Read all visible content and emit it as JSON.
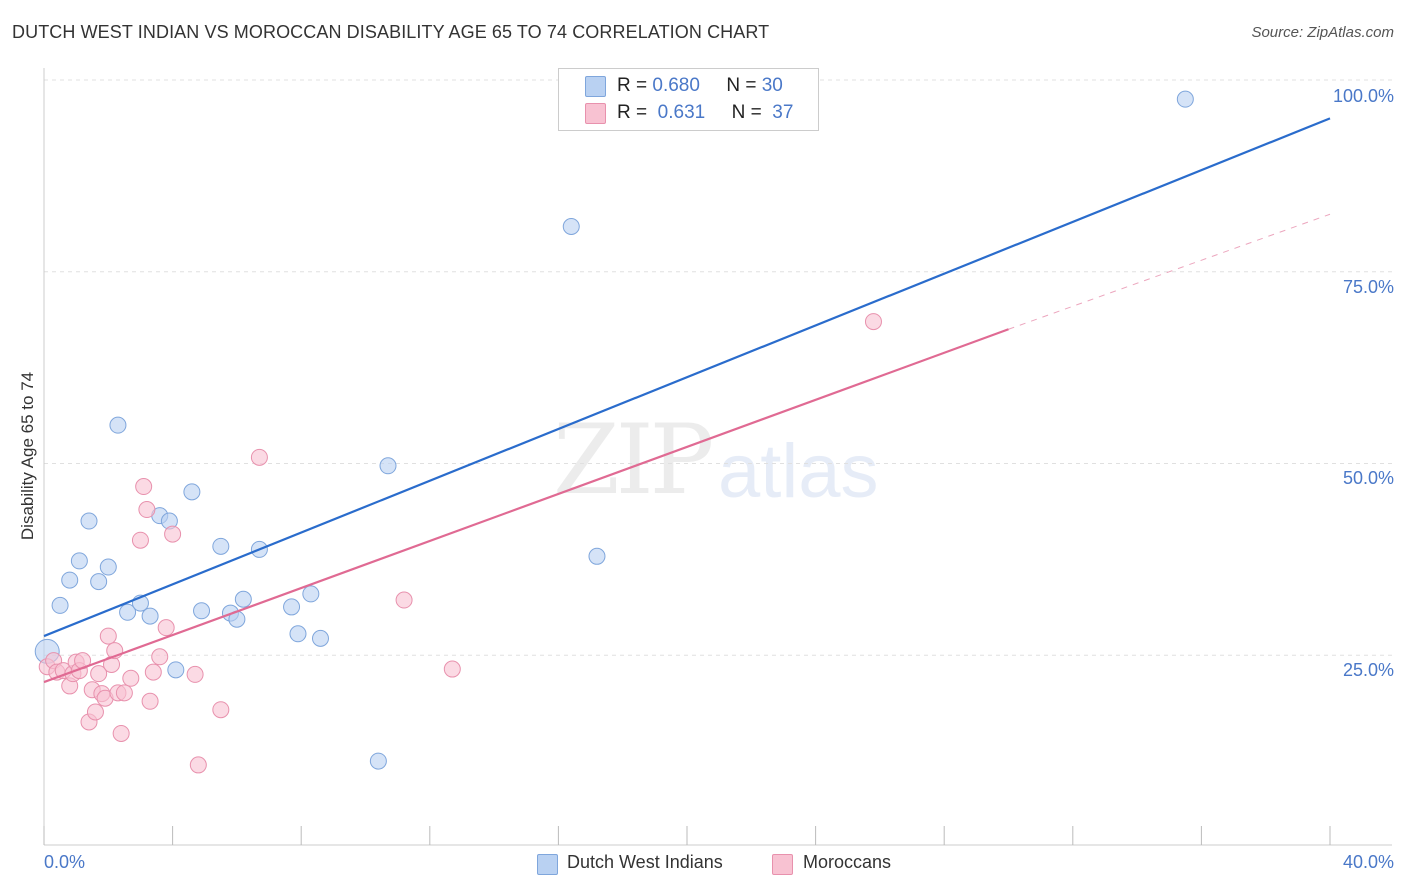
{
  "title": "DUTCH WEST INDIAN VS MOROCCAN DISABILITY AGE 65 TO 74 CORRELATION CHART",
  "source": "Source: ZipAtlas.com",
  "watermark": {
    "zip": "ZIP",
    "atlas": "atlas"
  },
  "legend": {
    "rows": [
      {
        "r_label": "R =",
        "r_value": "0.680",
        "n_label": "N =",
        "n_value": "30"
      },
      {
        "r_label": "R =",
        "r_value": "0.631",
        "n_label": "N =",
        "n_value": "37"
      }
    ],
    "bottom": [
      "Dutch West Indians",
      "Moroccans"
    ]
  },
  "colors": {
    "blue_fill": "#b9d1f2",
    "blue_stroke": "#7fa6dc",
    "blue_line": "#2a6ccc",
    "pink_fill": "#f8c2d2",
    "pink_stroke": "#e891ad",
    "pink_line": "#e06a93",
    "grid": "#e0e0e0",
    "tick_text": "#4a78c8"
  },
  "chart_data": {
    "type": "scatter",
    "title": "DUTCH WEST INDIAN VS MOROCCAN DISABILITY AGE 65 TO 74 CORRELATION CHART",
    "xlabel": "",
    "ylabel": "Disability Age 65 to 74",
    "xlim": [
      0,
      40
    ],
    "ylim": [
      0,
      100
    ],
    "x_tick_labels": [
      {
        "value": 0,
        "label": "0.0%"
      },
      {
        "value": 40,
        "label": "40.0%"
      }
    ],
    "y_tick_labels": [
      {
        "value": 25,
        "label": "25.0%"
      },
      {
        "value": 50,
        "label": "50.0%"
      },
      {
        "value": 75,
        "label": "75.0%"
      },
      {
        "value": 100,
        "label": "100.0%"
      }
    ],
    "series": [
      {
        "name": "Dutch West Indians",
        "color": "#7fa6dc",
        "trend": {
          "x0": 0,
          "y0": 27.5,
          "x1": 40,
          "y1": 95
        },
        "points": [
          [
            0.1,
            25.5
          ],
          [
            0.5,
            31.5
          ],
          [
            0.8,
            34.8
          ],
          [
            1.1,
            37.3
          ],
          [
            1.4,
            42.5
          ],
          [
            1.7,
            34.6
          ],
          [
            2.0,
            36.5
          ],
          [
            2.3,
            55.0
          ],
          [
            2.6,
            30.6
          ],
          [
            3.0,
            31.8
          ],
          [
            3.3,
            30.1
          ],
          [
            3.6,
            43.2
          ],
          [
            3.9,
            42.5
          ],
          [
            4.1,
            23.1
          ],
          [
            4.6,
            46.3
          ],
          [
            4.9,
            30.8
          ],
          [
            5.5,
            39.2
          ],
          [
            5.8,
            30.5
          ],
          [
            6.0,
            29.7
          ],
          [
            6.2,
            32.3
          ],
          [
            6.7,
            38.8
          ],
          [
            7.7,
            31.3
          ],
          [
            7.9,
            27.8
          ],
          [
            8.3,
            33.0
          ],
          [
            8.6,
            27.2
          ],
          [
            10.4,
            11.2
          ],
          [
            10.7,
            49.7
          ],
          [
            16.4,
            80.9
          ],
          [
            17.2,
            37.9
          ],
          [
            35.5,
            97.5
          ]
        ]
      },
      {
        "name": "Moroccans",
        "color": "#e891ad",
        "trend": {
          "x0": 0,
          "y0": 21.5,
          "x1": 30,
          "y1": 67.5,
          "dash_x1": 40,
          "dash_y1": 82.5
        },
        "points": [
          [
            0.1,
            23.5
          ],
          [
            0.3,
            24.3
          ],
          [
            0.4,
            22.8
          ],
          [
            0.6,
            23.0
          ],
          [
            0.8,
            21.0
          ],
          [
            0.9,
            22.6
          ],
          [
            1.0,
            24.1
          ],
          [
            1.1,
            23.0
          ],
          [
            1.2,
            24.3
          ],
          [
            1.4,
            16.3
          ],
          [
            1.5,
            20.5
          ],
          [
            1.6,
            17.6
          ],
          [
            1.7,
            22.6
          ],
          [
            1.8,
            20.0
          ],
          [
            1.9,
            19.4
          ],
          [
            2.0,
            27.5
          ],
          [
            2.1,
            23.8
          ],
          [
            2.2,
            25.6
          ],
          [
            2.3,
            20.1
          ],
          [
            2.4,
            14.8
          ],
          [
            2.5,
            20.1
          ],
          [
            2.7,
            22.0
          ],
          [
            3.0,
            40.0
          ],
          [
            3.1,
            47.0
          ],
          [
            3.2,
            44.0
          ],
          [
            3.3,
            19.0
          ],
          [
            3.4,
            22.8
          ],
          [
            3.6,
            24.8
          ],
          [
            3.8,
            28.6
          ],
          [
            4.0,
            40.8
          ],
          [
            4.7,
            22.5
          ],
          [
            4.8,
            10.7
          ],
          [
            5.5,
            17.9
          ],
          [
            6.7,
            50.8
          ],
          [
            11.2,
            32.2
          ],
          [
            12.7,
            23.2
          ],
          [
            25.8,
            68.5
          ]
        ]
      }
    ]
  }
}
